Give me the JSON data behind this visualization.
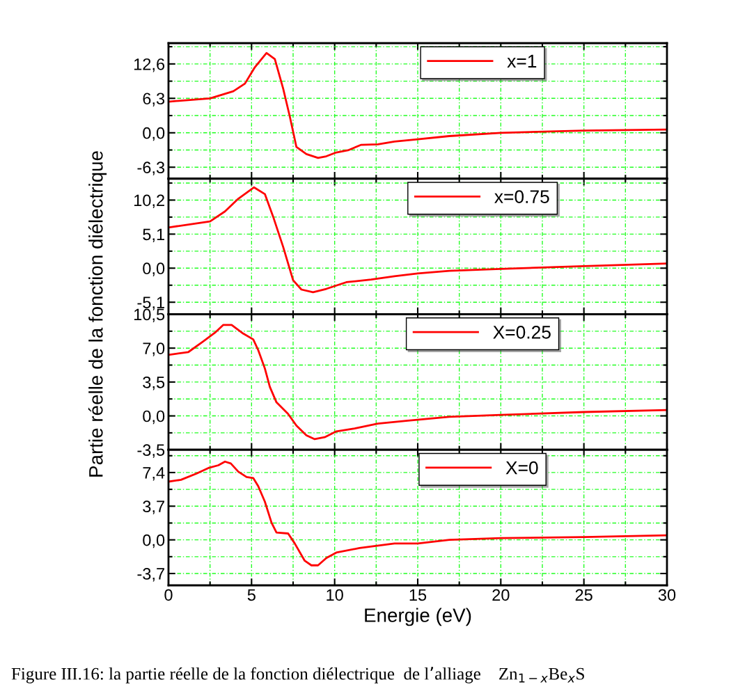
{
  "chart_data": [
    {
      "type": "line",
      "ylabel": "Partie réelle de la fonction diélectrique",
      "xlim": [
        0,
        30
      ],
      "xticks": [
        0,
        5,
        10,
        15,
        20,
        25,
        30
      ],
      "ylim": [
        -8.4,
        16.4
      ],
      "yticks": [
        {
          "value": -6.3,
          "label": "-6,3"
        },
        {
          "value": 0.0,
          "label": "0,0"
        },
        {
          "value": 6.3,
          "label": "6,3"
        },
        {
          "value": 12.6,
          "label": "12,6"
        }
      ],
      "grid": true,
      "legend": "top",
      "tick_labels": "y",
      "line_style": "solid",
      "marker": "none",
      "series": [
        {
          "name": "x=1",
          "color": "#ff0000",
          "x": [
            0,
            2.5,
            3.9,
            4.6,
            5.2,
            5.9,
            6.4,
            6.9,
            7.3,
            7.7,
            8.3,
            9.0,
            9.5,
            10.1,
            10.8,
            11.6,
            12.6,
            13.6,
            15.0,
            16.9,
            20,
            25,
            30
          ],
          "values": [
            5.7,
            6.3,
            7.6,
            9.0,
            12.0,
            14.6,
            13.5,
            8.1,
            3.0,
            -2.6,
            -3.9,
            -4.6,
            -4.3,
            -3.6,
            -3.2,
            -2.2,
            -2.1,
            -1.6,
            -1.2,
            -0.6,
            0.0,
            0.4,
            0.6
          ]
        }
      ]
    },
    {
      "type": "line",
      "xlim": [
        0,
        30
      ],
      "xticks": [
        0,
        5,
        10,
        15,
        20,
        25,
        30
      ],
      "ylim": [
        -6.9,
        13.4
      ],
      "yticks": [
        {
          "value": -5.1,
          "label": "-5,1"
        },
        {
          "value": 0.0,
          "label": "0,0"
        },
        {
          "value": 5.1,
          "label": "5,1"
        },
        {
          "value": 10.2,
          "label": "10,2"
        }
      ],
      "grid": true,
      "legend": "top",
      "tick_labels": "y",
      "line_style": "solid",
      "marker": "none",
      "series": [
        {
          "name": "x=0.75",
          "color": "#ff0000",
          "x": [
            0,
            2.5,
            3.4,
            4.2,
            5.15,
            5.8,
            6.3,
            6.9,
            7.5,
            8.0,
            8.7,
            9.5,
            10.7,
            12.2,
            13.6,
            15.0,
            16.9,
            20,
            25,
            30
          ],
          "values": [
            6.1,
            7.0,
            8.5,
            10.4,
            12.1,
            11.1,
            7.7,
            3.2,
            -1.8,
            -3.2,
            -3.6,
            -3.1,
            -2.1,
            -1.7,
            -1.2,
            -0.8,
            -0.4,
            -0.1,
            0.3,
            0.7
          ]
        }
      ]
    },
    {
      "type": "line",
      "xlim": [
        0,
        30
      ],
      "xticks": [
        0,
        5,
        10,
        15,
        20,
        25,
        30
      ],
      "ylim": [
        -3.5,
        10.5
      ],
      "yticks": [
        {
          "value": -3.5,
          "label": "-3,5"
        },
        {
          "value": 0.0,
          "label": "0,0"
        },
        {
          "value": 3.5,
          "label": "3,5"
        },
        {
          "value": 7.0,
          "label": "7,0"
        },
        {
          "value": 10.5,
          "label": "10,5"
        }
      ],
      "grid": true,
      "legend": "top",
      "tick_labels": "y",
      "line_style": "solid",
      "marker": "none",
      "series": [
        {
          "name": "X=0.25",
          "color": "#ff0000",
          "x": [
            0,
            1.2,
            2.1,
            2.8,
            3.3,
            3.8,
            4.5,
            5.1,
            5.4,
            5.8,
            6.1,
            6.5,
            7.2,
            7.7,
            8.3,
            8.8,
            9.4,
            10.1,
            11.2,
            12.6,
            14.3,
            16.9,
            20,
            25,
            30
          ],
          "values": [
            6.3,
            6.6,
            7.7,
            8.6,
            9.4,
            9.4,
            8.5,
            7.9,
            6.8,
            4.9,
            3.0,
            1.4,
            0.2,
            -1.0,
            -2.0,
            -2.4,
            -2.2,
            -1.6,
            -1.3,
            -0.8,
            -0.5,
            -0.1,
            0.1,
            0.4,
            0.6
          ]
        }
      ]
    },
    {
      "type": "line",
      "xlabel": "Energie (eV)",
      "xlim": [
        0,
        30
      ],
      "xticks": [
        0,
        5,
        10,
        15,
        20,
        25,
        30
      ],
      "ylim": [
        -5.0,
        9.9
      ],
      "yticks": [
        {
          "value": -3.7,
          "label": "-3,7"
        },
        {
          "value": 0.0,
          "label": "0,0"
        },
        {
          "value": 3.7,
          "label": "3,7"
        },
        {
          "value": 7.4,
          "label": "7,4"
        }
      ],
      "grid": true,
      "legend": "top",
      "line_style": "solid",
      "marker": "none",
      "annotations": [
        "Figure III.16: la partie réelle de la fonction diélectrique  de l’alliage    Zn$_{1−x}$Be$_{x}$S"
      ],
      "series": [
        {
          "name": "X=0",
          "color": "#ff0000",
          "x": [
            0,
            0.75,
            1.7,
            2.4,
            3.0,
            3.4,
            3.75,
            4.2,
            4.7,
            5.1,
            5.4,
            5.8,
            6.2,
            6.5,
            7.2,
            7.6,
            8.2,
            8.6,
            9.0,
            9.5,
            10.1,
            11.5,
            13.6,
            15.0,
            16.9,
            20,
            25,
            30
          ],
          "values": [
            6.4,
            6.6,
            7.3,
            7.9,
            8.2,
            8.6,
            8.4,
            7.5,
            6.9,
            6.8,
            5.9,
            4.2,
            1.9,
            0.8,
            0.7,
            -0.4,
            -2.3,
            -2.8,
            -2.8,
            -2.0,
            -1.4,
            -0.9,
            -0.4,
            -0.4,
            0.0,
            0.2,
            0.3,
            0.5
          ]
        }
      ]
    }
  ]
}
